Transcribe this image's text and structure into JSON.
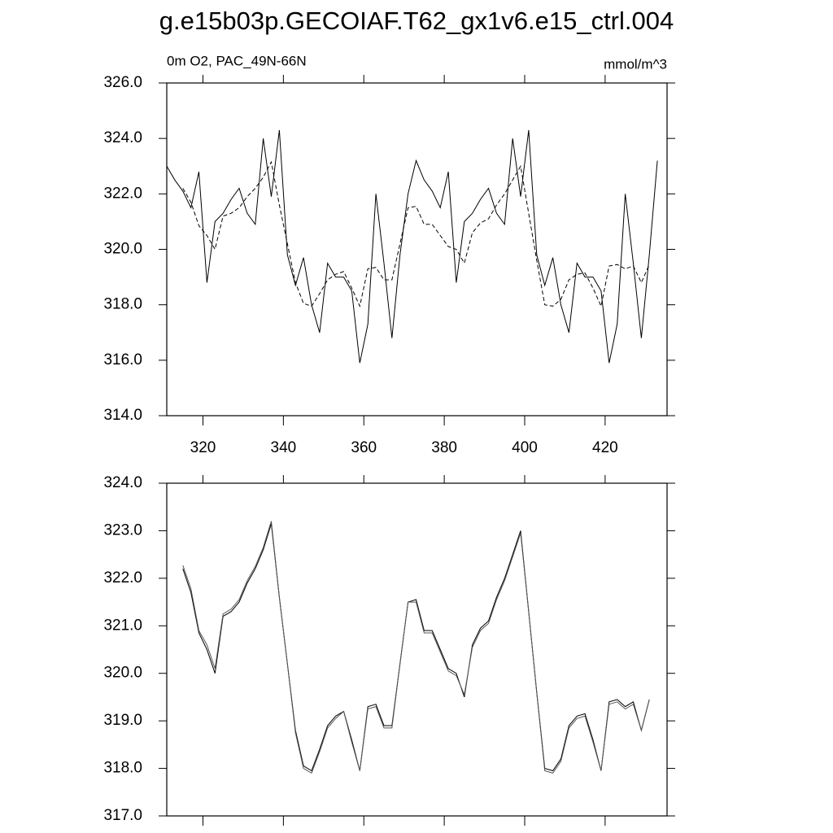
{
  "title": "g.e15b03p.GECOIAF.T62_gx1v6.e15_ctrl.004",
  "chart_data": [
    {
      "type": "line",
      "subtitle_left": "0m O2, PAC_49N-66N",
      "subtitle_right": "mmol/m^3",
      "x": [
        311,
        313,
        315,
        317,
        319,
        321,
        323,
        325,
        327,
        329,
        331,
        333,
        335,
        337,
        339,
        341,
        343,
        345,
        347,
        349,
        351,
        353,
        355,
        357,
        359,
        361,
        363,
        365,
        367,
        369,
        371,
        373,
        375,
        377,
        379,
        381,
        383,
        385,
        387,
        389,
        391,
        393,
        395,
        397,
        399,
        401,
        403,
        405,
        407,
        409,
        411,
        413,
        415,
        417,
        419,
        421,
        423,
        425,
        427,
        429,
        431,
        433
      ],
      "series": [
        {
          "color": "#000000",
          "line_style": "solid",
          "values": [
            323.0,
            322.5,
            322.1,
            321.5,
            322.8,
            318.8,
            321.0,
            321.3,
            321.8,
            322.2,
            321.3,
            320.9,
            324.0,
            321.9,
            324.3,
            319.8,
            318.7,
            319.7,
            318.0,
            317.0,
            319.5,
            319.0,
            319.0,
            318.5,
            315.9,
            317.3,
            322.0,
            319.5,
            316.8,
            319.8,
            322.0,
            323.2,
            322.5,
            322.1,
            321.5,
            322.8,
            318.8,
            321.0,
            321.3,
            321.8,
            322.2,
            321.3,
            320.9,
            324.0,
            321.9,
            324.3,
            319.8,
            318.7,
            319.7,
            318.0,
            317.0,
            319.5,
            319.0,
            319.0,
            318.5,
            315.9,
            317.3,
            322.0,
            319.5,
            316.8,
            319.8,
            323.2
          ]
        },
        {
          "color": "#000000",
          "line_style": "dashed",
          "values": [
            null,
            null,
            322.2,
            321.7,
            320.85,
            320.5,
            320.0,
            321.2,
            321.3,
            321.5,
            321.9,
            322.2,
            322.6,
            323.15,
            321.6,
            320.2,
            318.8,
            318.05,
            317.95,
            318.4,
            318.9,
            319.1,
            319.2,
            318.6,
            317.95,
            319.3,
            319.35,
            318.9,
            318.9,
            320.2,
            321.5,
            321.55,
            320.9,
            320.9,
            320.5,
            320.1,
            320.0,
            319.5,
            320.6,
            320.95,
            321.1,
            321.6,
            322.0,
            322.5,
            323.0,
            321.3,
            319.6,
            318.0,
            317.95,
            318.2,
            318.9,
            319.1,
            319.15,
            318.6,
            317.95,
            319.4,
            319.45,
            319.3,
            319.4,
            318.8,
            319.45,
            null
          ]
        }
      ],
      "xlim": [
        311,
        435.4
      ],
      "xticks": [
        320,
        340,
        360,
        380,
        400,
        420
      ],
      "ylim": [
        314,
        326
      ],
      "yticks": [
        {
          "value": 314,
          "label": "314.0"
        },
        {
          "value": 316,
          "label": "316.0"
        },
        {
          "value": 318,
          "label": "318.0"
        },
        {
          "value": 320,
          "label": "320.0"
        },
        {
          "value": 322,
          "label": "322.0"
        },
        {
          "value": 324,
          "label": "324.0"
        },
        {
          "value": 326,
          "label": "326.0"
        }
      ]
    },
    {
      "type": "line",
      "x": [
        311,
        313,
        315,
        317,
        319,
        321,
        323,
        325,
        327,
        329,
        331,
        333,
        335,
        337,
        339,
        341,
        343,
        345,
        347,
        349,
        351,
        353,
        355,
        357,
        359,
        361,
        363,
        365,
        367,
        369,
        371,
        373,
        375,
        377,
        379,
        381,
        383,
        385,
        387,
        389,
        391,
        393,
        395,
        397,
        399,
        401,
        403,
        405,
        407,
        409,
        411,
        413,
        415,
        417,
        419,
        421,
        423,
        425,
        427,
        429,
        431,
        433
      ],
      "series": [
        {
          "color": "#000000",
          "line_style": "solid",
          "values": [
            null,
            null,
            322.2,
            321.7,
            320.85,
            320.5,
            320.0,
            321.2,
            321.3,
            321.5,
            321.9,
            322.2,
            322.6,
            323.15,
            321.6,
            320.2,
            318.8,
            318.05,
            317.95,
            318.4,
            318.9,
            319.1,
            319.2,
            318.6,
            317.95,
            319.3,
            319.35,
            318.9,
            318.9,
            320.2,
            321.5,
            321.55,
            320.9,
            320.9,
            320.5,
            320.1,
            320.0,
            319.5,
            320.6,
            320.95,
            321.1,
            321.6,
            322.0,
            322.5,
            323.0,
            321.3,
            319.6,
            318.0,
            317.95,
            318.2,
            318.9,
            319.1,
            319.15,
            318.6,
            317.95,
            319.4,
            319.45,
            319.3,
            319.4,
            318.8,
            319.45,
            null
          ]
        },
        {
          "color": "#555555",
          "line_style": "solid",
          "values": [
            null,
            null,
            322.27,
            321.78,
            320.9,
            320.6,
            320.1,
            321.25,
            321.35,
            321.55,
            321.95,
            322.25,
            322.65,
            323.2,
            321.6,
            320.2,
            318.75,
            318.0,
            317.9,
            318.35,
            318.85,
            319.05,
            319.2,
            318.55,
            317.95,
            319.25,
            319.3,
            318.85,
            318.85,
            320.2,
            321.5,
            321.5,
            320.85,
            320.85,
            320.45,
            320.05,
            319.95,
            319.55,
            320.55,
            320.9,
            321.05,
            321.55,
            321.95,
            322.45,
            322.95,
            321.3,
            319.6,
            317.95,
            317.9,
            318.15,
            318.85,
            319.05,
            319.1,
            318.55,
            317.95,
            319.35,
            319.4,
            319.25,
            319.35,
            318.8,
            319.45,
            null
          ]
        }
      ],
      "xlim": [
        311,
        435.4
      ],
      "xticks": [
        320,
        340,
        360,
        380,
        400,
        420
      ],
      "ylim": [
        317,
        324
      ],
      "yticks": [
        {
          "value": 317,
          "label": "317.0"
        },
        {
          "value": 318,
          "label": "318.0"
        },
        {
          "value": 319,
          "label": "319.0"
        },
        {
          "value": 320,
          "label": "320.0"
        },
        {
          "value": 321,
          "label": "321.0"
        },
        {
          "value": 322,
          "label": "322.0"
        },
        {
          "value": 323,
          "label": "323.0"
        },
        {
          "value": 324,
          "label": "324.0"
        }
      ]
    }
  ]
}
